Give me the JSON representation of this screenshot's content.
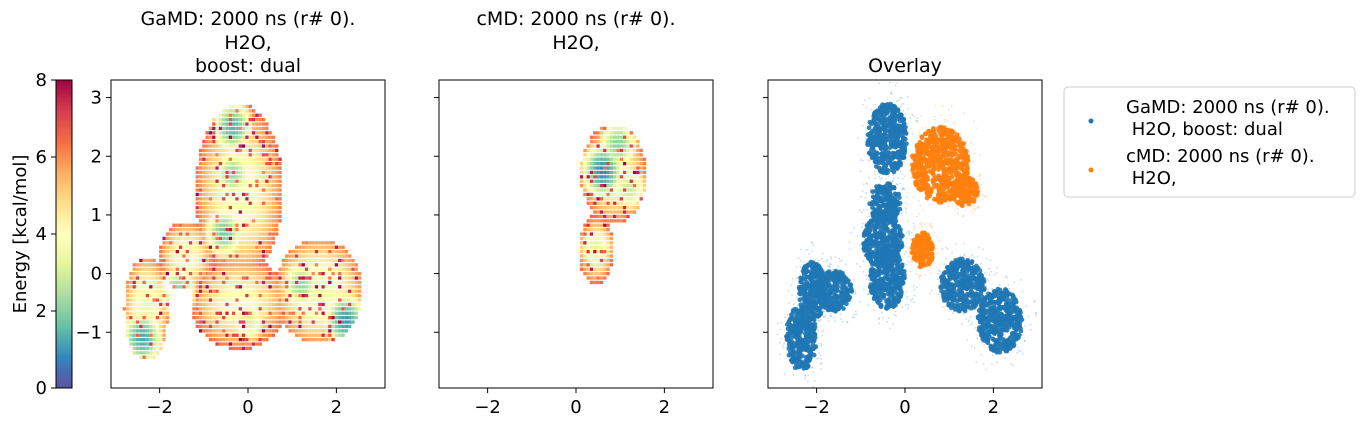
{
  "colorbar": {
    "label": "Energy [kcal/mol]",
    "range": [
      0,
      8
    ],
    "ticks": [
      "0",
      "2",
      "4",
      "6",
      "8"
    ],
    "colors": [
      "#5e4fa2",
      "#3288bd",
      "#66c2a5",
      "#abdda4",
      "#e6f598",
      "#ffffbf",
      "#fee08b",
      "#fdae61",
      "#f46d43",
      "#d53e4f",
      "#9e0142"
    ]
  },
  "chart_data": [
    {
      "type": "heatmap",
      "title_lines": [
        "GaMD: 2000 ns (r# 0).",
        "H2O,",
        "boost: dual"
      ],
      "xlim": [
        -3.1,
        3.1
      ],
      "ylim": [
        -1.95,
        3.3
      ],
      "xticks": [
        -2,
        0,
        2
      ],
      "yticks": [
        -1,
        0,
        1,
        2,
        3
      ],
      "xtick_labels": [
        "−2",
        "0",
        "2"
      ],
      "ytick_labels": [
        "−1",
        "0",
        "1",
        "2",
        "3"
      ],
      "regions": [
        {
          "x": -0.2,
          "y": 1.4,
          "rx": 1.0,
          "ry": 1.5,
          "min_energy": 3.8
        },
        {
          "x": -2.3,
          "y": -0.6,
          "rx": 0.5,
          "ry": 0.9,
          "min_energy": 3.5
        },
        {
          "x": -1.4,
          "y": 0.3,
          "rx": 0.6,
          "ry": 0.6,
          "min_energy": 3.8
        },
        {
          "x": 1.6,
          "y": -0.3,
          "rx": 1.0,
          "ry": 0.9,
          "min_energy": 3.5
        },
        {
          "x": -0.2,
          "y": -0.5,
          "rx": 1.1,
          "ry": 0.8,
          "min_energy": 3.9
        }
      ],
      "minima": [
        {
          "x": -0.35,
          "y": 2.5,
          "energy": 1.4
        },
        {
          "x": -0.35,
          "y": 1.7,
          "energy": 2.2
        },
        {
          "x": -0.55,
          "y": 0.7,
          "energy": 1.8
        },
        {
          "x": -2.4,
          "y": -1.1,
          "energy": 1.2
        },
        {
          "x": -1.6,
          "y": -0.3,
          "energy": 2.0
        },
        {
          "x": 1.2,
          "y": -0.2,
          "energy": 2.2
        },
        {
          "x": 2.2,
          "y": -0.8,
          "energy": 1.0
        },
        {
          "x": 0.0,
          "y": -0.8,
          "energy": 3.0
        }
      ]
    },
    {
      "type": "heatmap",
      "title_lines": [
        "cMD: 2000 ns (r# 0).",
        "H2O,"
      ],
      "xlim": [
        -3.1,
        3.1
      ],
      "ylim": [
        -1.95,
        3.3
      ],
      "xticks": [
        -2,
        0,
        2
      ],
      "yticks": [
        -1,
        0,
        1,
        2,
        3
      ],
      "xtick_labels": [
        "−2",
        "0",
        "2"
      ],
      "regions": [
        {
          "x": 0.85,
          "y": 1.7,
          "rx": 0.75,
          "ry": 0.85,
          "min_energy": 3.8
        },
        {
          "x": 0.45,
          "y": 0.4,
          "rx": 0.4,
          "ry": 0.6,
          "min_energy": 4.0
        }
      ],
      "minima": [
        {
          "x": 0.6,
          "y": 1.75,
          "energy": 0.8
        },
        {
          "x": 0.95,
          "y": 2.2,
          "energy": 2.0
        },
        {
          "x": 0.45,
          "y": 0.45,
          "energy": 3.2
        },
        {
          "x": 1.2,
          "y": 1.45,
          "energy": 2.8
        }
      ]
    },
    {
      "type": "scatter",
      "title": "Overlay",
      "xlim": [
        -3.1,
        3.1
      ],
      "ylim": [
        -1.95,
        3.3
      ],
      "xticks": [
        -2,
        0,
        2
      ],
      "yticks": [
        -1,
        0,
        1,
        2,
        3
      ],
      "xtick_labels": [
        "−2",
        "0",
        "2"
      ],
      "series": [
        {
          "name": "GaMD: 2000 ns (r# 0).\n H2O, boost: dual",
          "color": "#1f77b4",
          "clusters": [
            {
              "x": -0.4,
              "y": 2.3,
              "rx": 0.45,
              "ry": 0.6
            },
            {
              "x": -0.45,
              "y": 1.2,
              "rx": 0.35,
              "ry": 0.35
            },
            {
              "x": -0.5,
              "y": 0.55,
              "rx": 0.45,
              "ry": 0.45
            },
            {
              "x": -0.4,
              "y": -0.1,
              "rx": 0.4,
              "ry": 0.5
            },
            {
              "x": -2.1,
              "y": -0.3,
              "rx": 0.3,
              "ry": 0.5
            },
            {
              "x": -2.35,
              "y": -1.1,
              "rx": 0.35,
              "ry": 0.55
            },
            {
              "x": -1.6,
              "y": -0.3,
              "rx": 0.4,
              "ry": 0.35
            },
            {
              "x": 1.3,
              "y": -0.2,
              "rx": 0.5,
              "ry": 0.45
            },
            {
              "x": 2.15,
              "y": -0.8,
              "rx": 0.5,
              "ry": 0.55
            }
          ]
        },
        {
          "name": "cMD: 2000 ns (r# 0).\n H2O,",
          "color": "#ff7f0e",
          "clusters": [
            {
              "x": 0.8,
              "y": 1.85,
              "rx": 0.65,
              "ry": 0.65
            },
            {
              "x": 1.35,
              "y": 1.4,
              "rx": 0.3,
              "ry": 0.25
            },
            {
              "x": 0.4,
              "y": 0.4,
              "rx": 0.25,
              "ry": 0.3
            }
          ]
        }
      ]
    }
  ]
}
